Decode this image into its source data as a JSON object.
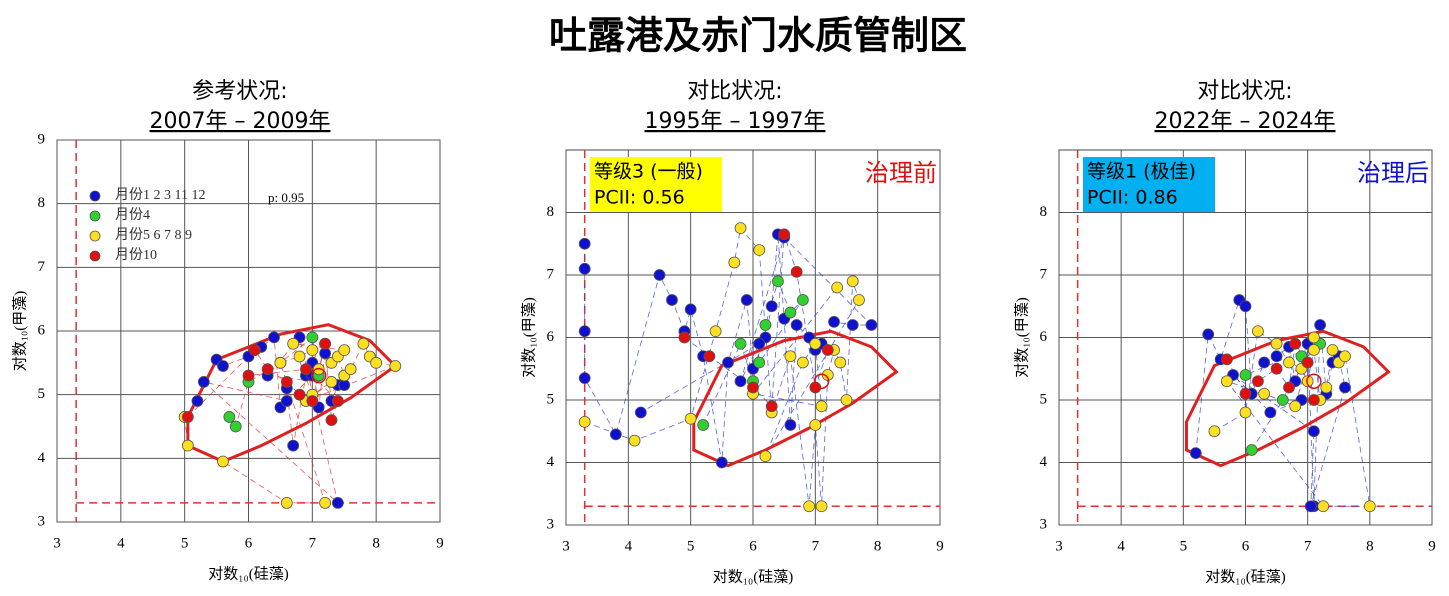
{
  "title": "吐露港及赤门水质管制区",
  "chart_data": [
    {
      "type": "scatter",
      "title": "参考状况:",
      "subtitle": "2007年 – 2009年",
      "x_label": "对数₁₀(硅藻)",
      "y_label": "对数₁₀(甲藻)",
      "xlim": [
        3,
        9
      ],
      "ylim": [
        3,
        9
      ],
      "xticks": [
        3,
        4,
        5,
        6,
        7,
        8,
        9
      ],
      "yticks": [
        3,
        4,
        5,
        6,
        7,
        8,
        9
      ],
      "grid": true,
      "link_color": "#e03030",
      "annotation": "p: 0.95",
      "legend": "upper left",
      "ref_lines": {
        "x": 3.3,
        "y": 3.3,
        "color": "#e03030"
      },
      "center": {
        "x": 7.1,
        "y": 5.3
      },
      "envelope": {
        "color": "#e02020",
        "x": [
          5.05,
          5.5,
          6.5,
          7.25,
          7.9,
          8.3,
          7.6,
          6.9,
          6.2,
          5.6,
          5.05
        ],
        "y": [
          4.65,
          5.55,
          5.95,
          6.1,
          5.85,
          5.45,
          4.95,
          4.55,
          4.2,
          3.95,
          4.2
        ]
      },
      "series": [
        {
          "name": "月份1 2 3 11 12",
          "color": "#1010d0",
          "x": [
            5.2,
            5.5,
            5.6,
            6.0,
            6.2,
            6.4,
            6.5,
            6.6,
            6.7,
            6.9,
            7.0,
            7.1,
            7.2,
            7.3,
            7.4,
            7.5,
            6.3,
            6.8,
            7.4,
            5.3,
            6.6,
            7.0
          ],
          "y": [
            4.9,
            5.55,
            5.45,
            5.6,
            5.75,
            5.9,
            4.8,
            5.1,
            4.2,
            5.3,
            5.5,
            4.8,
            5.65,
            4.9,
            5.15,
            5.15,
            5.3,
            5.9,
            3.3,
            5.2,
            4.9,
            5.3
          ]
        },
        {
          "name": "月份4",
          "color": "#30d030",
          "x": [
            5.7,
            5.8,
            6.0,
            6.5,
            7.0,
            7.1
          ],
          "y": [
            4.65,
            4.5,
            5.2,
            5.5,
            5.9,
            5.3
          ]
        },
        {
          "name": "月份5 6 7 8 9",
          "color": "#ffe020",
          "x": [
            5.0,
            5.05,
            5.6,
            6.6,
            7.2,
            6.5,
            6.8,
            7.0,
            7.1,
            7.2,
            7.3,
            7.4,
            7.5,
            7.6,
            7.8,
            7.9,
            8.0,
            8.3,
            6.9,
            7.3,
            7.0,
            6.7,
            7.5
          ],
          "y": [
            4.65,
            4.2,
            3.95,
            3.3,
            3.3,
            5.5,
            5.6,
            5.7,
            5.4,
            5.8,
            5.5,
            5.6,
            5.3,
            5.4,
            5.8,
            5.6,
            5.5,
            5.45,
            4.9,
            5.2,
            5.0,
            5.8,
            5.7
          ]
        },
        {
          "name": "月份10",
          "color": "#e01010",
          "x": [
            5.05,
            6.1,
            6.3,
            6.6,
            6.8,
            7.0,
            7.2,
            7.3,
            7.4,
            6.9,
            6.0
          ],
          "y": [
            4.65,
            5.7,
            5.4,
            5.2,
            5.0,
            4.9,
            5.8,
            4.6,
            4.9,
            5.4,
            5.3
          ]
        }
      ]
    },
    {
      "type": "scatter",
      "title": "对比状况:",
      "subtitle": "1995年 – 1997年",
      "x_label": "对数₁₀(硅藻)",
      "y_label": "对数₁₀(甲藻)",
      "xlim": [
        3,
        9
      ],
      "ylim": [
        3,
        9
      ],
      "xticks": [
        3,
        4,
        5,
        6,
        7,
        8,
        9
      ],
      "yticks": [
        3,
        4,
        5,
        6,
        7,
        8
      ],
      "grid": true,
      "link_color": "#3040d0",
      "grade": "等级3 (一般)",
      "pcii": "PCII: 0.56",
      "badge_color": "#ffff00",
      "status": "治理前",
      "status_color": "#e01010",
      "ref_lines": {
        "x": 3.3,
        "y": 3.3,
        "color": "#e03030"
      },
      "center": {
        "x": 7.1,
        "y": 5.3
      },
      "envelope": {
        "color": "#e02020",
        "x": [
          5.05,
          5.5,
          6.5,
          7.25,
          7.9,
          8.3,
          7.6,
          6.9,
          6.2,
          5.6,
          5.05
        ],
        "y": [
          4.65,
          5.55,
          5.95,
          6.1,
          5.85,
          5.45,
          4.95,
          4.55,
          4.2,
          3.95,
          4.2
        ]
      },
      "series": [
        {
          "color": "#1010d0",
          "x": [
            3.3,
            3.3,
            3.3,
            3.3,
            3.8,
            4.5,
            4.7,
            4.9,
            5.0,
            5.2,
            5.5,
            5.6,
            5.9,
            6.0,
            6.2,
            6.3,
            6.4,
            6.5,
            6.6,
            6.7,
            6.9,
            7.0,
            7.1,
            7.3,
            7.6,
            7.9,
            6.5,
            5.8,
            6.1,
            4.2
          ],
          "y": [
            7.5,
            7.1,
            6.1,
            5.35,
            4.45,
            7.0,
            6.6,
            6.1,
            6.45,
            5.7,
            4.0,
            5.6,
            6.6,
            5.5,
            6.0,
            6.5,
            7.65,
            6.3,
            4.6,
            6.2,
            6.0,
            5.8,
            5.9,
            6.25,
            6.2,
            6.2,
            7.6,
            5.3,
            5.9,
            4.8
          ]
        },
        {
          "color": "#30d030",
          "x": [
            5.2,
            5.8,
            6.0,
            6.2,
            6.4,
            6.6,
            6.8,
            6.1
          ],
          "y": [
            4.6,
            5.9,
            5.3,
            6.2,
            6.9,
            6.4,
            6.6,
            5.6
          ]
        },
        {
          "color": "#ffe020",
          "x": [
            3.3,
            4.1,
            5.0,
            5.4,
            5.7,
            5.8,
            6.1,
            6.3,
            6.6,
            6.9,
            7.0,
            7.1,
            7.2,
            7.3,
            7.4,
            7.5,
            7.6,
            7.7,
            6.2,
            6.8,
            7.0,
            7.1,
            6.0,
            7.35
          ],
          "y": [
            4.65,
            4.35,
            4.7,
            6.1,
            7.2,
            7.75,
            7.4,
            4.8,
            5.7,
            3.3,
            4.6,
            3.3,
            5.4,
            5.8,
            5.6,
            5.0,
            6.9,
            6.6,
            4.1,
            5.6,
            5.9,
            4.9,
            5.1,
            6.8
          ]
        },
        {
          "color": "#e01010",
          "x": [
            4.9,
            5.3,
            6.0,
            6.3,
            6.5,
            6.7,
            7.0,
            7.2
          ],
          "y": [
            6.0,
            5.7,
            5.2,
            4.9,
            7.65,
            7.05,
            5.2,
            5.8
          ]
        }
      ]
    },
    {
      "type": "scatter",
      "title": "对比状况:",
      "subtitle": "2022年 – 2024年",
      "x_label": "对数₁₀(硅藻)",
      "y_label": "对数₁₀(甲藻)",
      "xlim": [
        3,
        9
      ],
      "ylim": [
        3,
        9
      ],
      "xticks": [
        3,
        4,
        5,
        6,
        7,
        8,
        9
      ],
      "yticks": [
        3,
        4,
        5,
        6,
        7,
        8
      ],
      "grid": true,
      "link_color": "#3040d0",
      "grade": "等级1 (极佳)",
      "pcii": "PCII: 0.86",
      "badge_color": "#00b0f0",
      "status": "治理后",
      "status_color": "#1010d0",
      "ref_lines": {
        "x": 3.3,
        "y": 3.3,
        "color": "#e03030"
      },
      "center": {
        "x": 7.1,
        "y": 5.3
      },
      "envelope": {
        "color": "#e02020",
        "x": [
          5.05,
          5.5,
          6.5,
          7.25,
          7.9,
          8.3,
          7.6,
          6.9,
          6.2,
          5.6,
          5.05
        ],
        "y": [
          4.65,
          5.55,
          5.95,
          6.1,
          5.85,
          5.45,
          4.95,
          4.55,
          4.2,
          3.95,
          4.2
        ]
      },
      "series": [
        {
          "color": "#1010d0",
          "x": [
            5.2,
            5.4,
            5.6,
            5.9,
            6.0,
            6.1,
            6.3,
            6.5,
            6.7,
            6.8,
            7.0,
            7.1,
            7.2,
            7.3,
            7.4,
            7.5,
            7.6,
            7.05,
            7.1,
            5.8,
            6.4,
            6.9
          ],
          "y": [
            4.15,
            6.05,
            5.65,
            6.6,
            6.5,
            5.1,
            5.6,
            5.7,
            5.85,
            5.3,
            5.9,
            3.3,
            6.2,
            5.1,
            5.6,
            5.7,
            5.2,
            3.3,
            4.5,
            5.4,
            4.8,
            5.0
          ]
        },
        {
          "color": "#30d030",
          "x": [
            6.1,
            6.6,
            6.9,
            7.2,
            6.0
          ],
          "y": [
            4.2,
            5.0,
            5.7,
            5.9,
            5.4
          ]
        },
        {
          "color": "#ffe020",
          "x": [
            5.5,
            6.0,
            6.2,
            6.5,
            6.7,
            6.9,
            7.0,
            7.1,
            7.2,
            7.3,
            7.4,
            7.5,
            7.6,
            8.0,
            7.25,
            5.7,
            6.3,
            6.8,
            7.1
          ],
          "y": [
            4.5,
            4.8,
            6.1,
            5.9,
            5.6,
            5.5,
            5.3,
            5.8,
            5.0,
            5.2,
            5.8,
            5.6,
            5.7,
            3.3,
            3.3,
            5.3,
            5.1,
            4.9,
            6.0
          ]
        },
        {
          "color": "#e01010",
          "x": [
            5.7,
            6.0,
            6.2,
            6.5,
            6.7,
            6.8,
            7.0,
            7.1
          ],
          "y": [
            5.65,
            5.1,
            5.3,
            5.5,
            5.2,
            5.9,
            5.6,
            5.0
          ]
        }
      ]
    }
  ]
}
